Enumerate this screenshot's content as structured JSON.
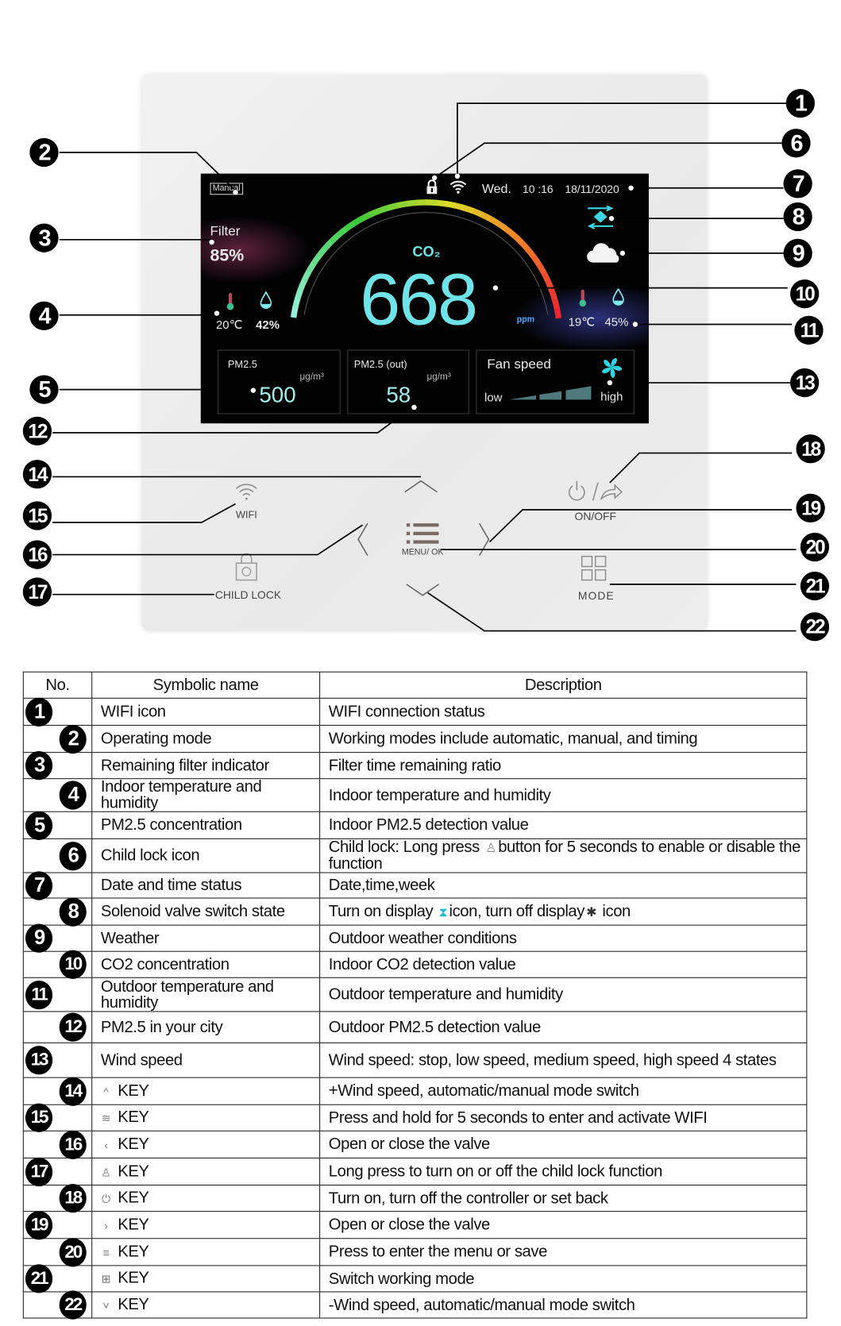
{
  "screen": {
    "mode": "Manual",
    "weekday": "Wed.",
    "time": "10 :16",
    "date": "18/11/2020",
    "filter_label": "Filter",
    "filter_value": "85%",
    "co2_label": "CO₂",
    "co2_value": "668",
    "co2_unit": "ppm",
    "indoor_temp": "20℃",
    "indoor_humidity": "42%",
    "outdoor_temp": "19℃",
    "outdoor_humidity": "45%",
    "pm25_label": "PM2.5",
    "pm25_unit": "μg/m³",
    "pm25_value": "500",
    "pm25_out_label": "PM2.5 (out)",
    "pm25_out_unit": "μg/m³",
    "pm25_out_value": "58",
    "fan_label": "Fan speed",
    "fan_low": "low",
    "fan_high": "high",
    "icons": [
      "lock-icon",
      "wifi-icon",
      "valve-icon",
      "cloud-icon",
      "thermometer-icon",
      "humidity-drop-icon",
      "fan-icon"
    ],
    "accent": "#6fe3e8"
  },
  "buttons": {
    "wifi": "WIFI",
    "menu": "MENU/ OK",
    "on_off": "ON/OFF",
    "child_lock": "CHILD LOCK",
    "mode": "MODE"
  },
  "callouts": [
    "1",
    "2",
    "3",
    "4",
    "5",
    "6",
    "7",
    "8",
    "9",
    "10",
    "11",
    "12",
    "13",
    "14",
    "15",
    "16",
    "17",
    "18",
    "19",
    "20",
    "21",
    "22"
  ],
  "table": {
    "headers": [
      "No.",
      "Symbolic name",
      "Description"
    ],
    "rows": [
      {
        "no": "1",
        "name": "WIFI icon",
        "desc": "WIFI connection status"
      },
      {
        "no": "2",
        "name": "Operating mode",
        "desc": "Working modes include automatic, manual, and timing"
      },
      {
        "no": "3",
        "name": "Remaining filter indicator",
        "desc": "Filter time remaining ratio"
      },
      {
        "no": "4",
        "name": "Indoor temperature and humidity",
        "desc": "Indoor temperature and humidity"
      },
      {
        "no": "5",
        "name": "PM2.5 concentration",
        "desc": "Indoor PM2.5 detection value"
      },
      {
        "no": "6",
        "name": "Child lock icon",
        "desc": "Child lock: Long press",
        "desc_icon": "child-lock-icon",
        "desc2": "button for 5 seconds to enable or disable the function"
      },
      {
        "no": "7",
        "name": "Date and time status",
        "desc": "Date,time,week"
      },
      {
        "no": "8",
        "name": "Solenoid valve switch state",
        "desc": "Turn on display",
        "desc_icon": "valve-on-icon",
        "desc2": "icon, turn off display",
        "desc_icon2": "valve-off-icon",
        "desc3": "icon"
      },
      {
        "no": "9",
        "name": "Weather",
        "desc": "Outdoor weather conditions"
      },
      {
        "no": "10",
        "name": "CO2 concentration",
        "desc": "Indoor CO2 detection value"
      },
      {
        "no": "11",
        "name": "Outdoor temperature and humidity",
        "desc": "Outdoor temperature and humidity"
      },
      {
        "no": "12",
        "name": "PM2.5 in your city",
        "desc": "Outdoor PM2.5 detection value"
      },
      {
        "no": "13",
        "name": "Wind speed",
        "desc": "Wind speed: stop, low speed, medium speed, high speed 4 states"
      },
      {
        "no": "14",
        "name": "KEY",
        "name_icon": "chevron-up-icon",
        "desc": "+Wind speed, automatic/manual mode switch"
      },
      {
        "no": "15",
        "name": "KEY",
        "name_icon": "wifi-icon",
        "desc": "Press and hold for 5 seconds to enter and activate WIFI"
      },
      {
        "no": "16",
        "name": "KEY",
        "name_icon": "chevron-left-icon",
        "desc": "Open or close the valve"
      },
      {
        "no": "17",
        "name": "KEY",
        "name_icon": "child-lock-icon",
        "desc": "Long press to turn on or off the child lock function"
      },
      {
        "no": "18",
        "name": "KEY",
        "name_icon": "power-icon",
        "desc": "Turn on, turn off the controller or set back"
      },
      {
        "no": "19",
        "name": "KEY",
        "name_icon": "chevron-right-icon",
        "desc": "Open or close the valve"
      },
      {
        "no": "20",
        "name": "KEY",
        "name_icon": "menu-icon",
        "desc": "Press to enter the menu or save"
      },
      {
        "no": "21",
        "name": "KEY",
        "name_icon": "mode-icon",
        "desc": "Switch working mode"
      },
      {
        "no": "22",
        "name": "KEY",
        "name_icon": "chevron-down-icon",
        "desc": "-Wind speed, automatic/manual mode switch"
      }
    ]
  }
}
